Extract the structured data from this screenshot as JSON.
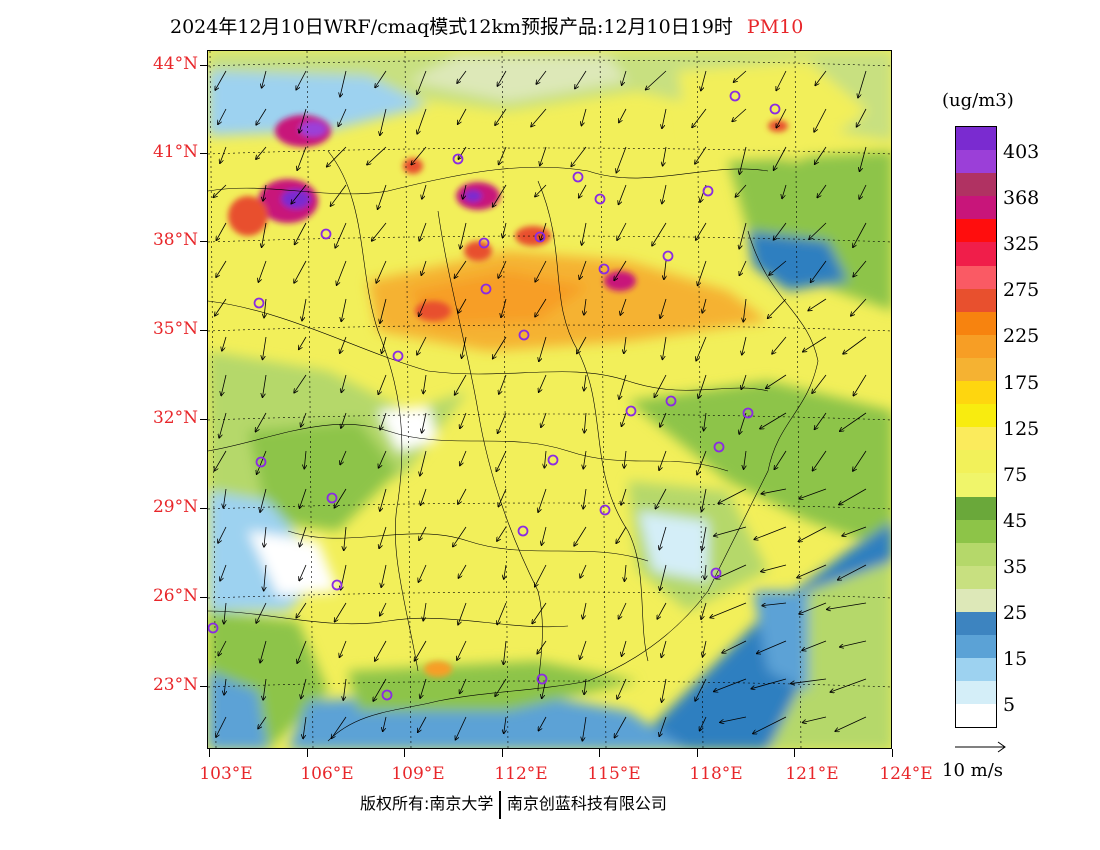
{
  "title": {
    "main": "2024年12月10日WRF/cmaq模式12km预报产品:12月10日19时",
    "variable": "PM10"
  },
  "map": {
    "lat_labels": [
      "44°N",
      "41°N",
      "38°N",
      "35°N",
      "32°N",
      "29°N",
      "26°N",
      "23°N"
    ],
    "lon_labels": [
      "103°E",
      "106°E",
      "109°E",
      "112°E",
      "115°E",
      "118°E",
      "121°E",
      "124°E"
    ],
    "city_marker_count": 29,
    "background_color": "#f2ef5a",
    "ocean_color": "#2f7fc0"
  },
  "legend": {
    "unit": "(ug/m3)",
    "labels": [
      "403",
      "368",
      "325",
      "275",
      "225",
      "175",
      "125",
      "75",
      "45",
      "35",
      "25",
      "15",
      "5"
    ],
    "colors": [
      "#7a2bd0",
      "#9b3fd8",
      "#b03262",
      "#c8157a",
      "#ff0d0d",
      "#f01e4a",
      "#fa5a64",
      "#e8502e",
      "#f7830f",
      "#f79e25",
      "#f5b232",
      "#fed60f",
      "#f8ec0f",
      "#fbeb5c",
      "#f2f15a",
      "#f0f56a",
      "#6aa83a",
      "#8dc448",
      "#b5d86a",
      "#c8e080",
      "#dde8b8",
      "#3d84c0",
      "#5ba2d6",
      "#9dd2f0",
      "#d4eef8",
      "#ffffff"
    ]
  },
  "wind_reference": {
    "label": "10 m/s"
  },
  "footer": {
    "copyright": "版权所有:南京大学",
    "company": "南京创蓝科技有限公司"
  }
}
